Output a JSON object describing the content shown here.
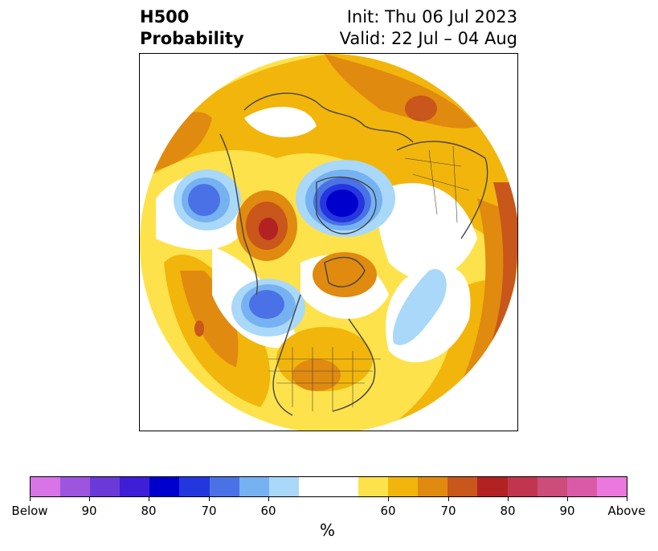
{
  "header": {
    "title_line1": "H500",
    "title_line2": "Probability",
    "init_text": "Init: Thu 06 Jul 2023",
    "valid_text": "Valid: 22 Jul – 04 Aug"
  },
  "map": {
    "projection": "north polar stereographic",
    "background_color": "#ffffff",
    "coastline_color": "#444444"
  },
  "colorbar": {
    "colors": [
      "#d873e8",
      "#9d55e0",
      "#6a39d8",
      "#3e1ed6",
      "#0000cc",
      "#2436de",
      "#4a72e6",
      "#76b2f2",
      "#a9d8f9",
      "#ffffff",
      "#ffffff",
      "#fde24b",
      "#f2b50b",
      "#e08a10",
      "#c9561a",
      "#b22222",
      "#c2354f",
      "#cc4c7a",
      "#db5aa8",
      "#ea78de"
    ],
    "tick_labels": [
      "Below",
      "90",
      "80",
      "70",
      "60",
      "60",
      "70",
      "80",
      "90",
      "Above"
    ],
    "unit_label": "%"
  }
}
